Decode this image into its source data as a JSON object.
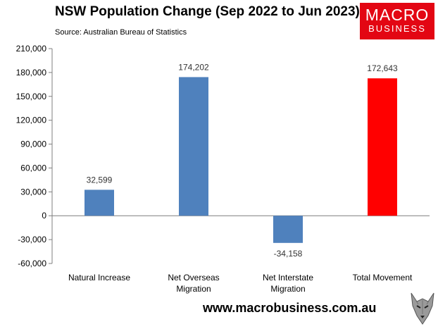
{
  "header": {
    "title": "NSW Population Change (Sep 2022 to Jun 2023)",
    "source": "Source: Australian Bureau of Statistics"
  },
  "logo": {
    "line1": "MACRO",
    "line2": "BUSINESS"
  },
  "footer": {
    "website": "www.macrobusiness.com.au"
  },
  "colors": {
    "bar": "#4f81bd",
    "total_bar": "#ff0000",
    "logo_bg": "#e30613"
  },
  "chart_data": {
    "type": "bar",
    "title": "NSW Population Change (Sep 2022 to Jun 2023)",
    "categories": [
      [
        "Natural Increase"
      ],
      [
        "Net Overseas",
        "Migration"
      ],
      [
        "Net Interstate",
        "Migration"
      ],
      [
        "Total Movement"
      ]
    ],
    "values": [
      32599,
      174202,
      -34158,
      172643
    ],
    "value_labels": [
      "32,599",
      "174,202",
      "-34,158",
      "172,643"
    ],
    "bar_colors": [
      "#4f81bd",
      "#4f81bd",
      "#4f81bd",
      "#ff0000"
    ],
    "ylim": [
      -60000,
      210000
    ],
    "yticks": [
      -60000,
      -30000,
      0,
      30000,
      60000,
      90000,
      120000,
      150000,
      180000,
      210000
    ],
    "ytick_labels": [
      "-60,000",
      "-30,000",
      "0",
      "30,000",
      "60,000",
      "90,000",
      "120,000",
      "150,000",
      "180,000",
      "210,000"
    ],
    "grid": false,
    "legend": false
  }
}
